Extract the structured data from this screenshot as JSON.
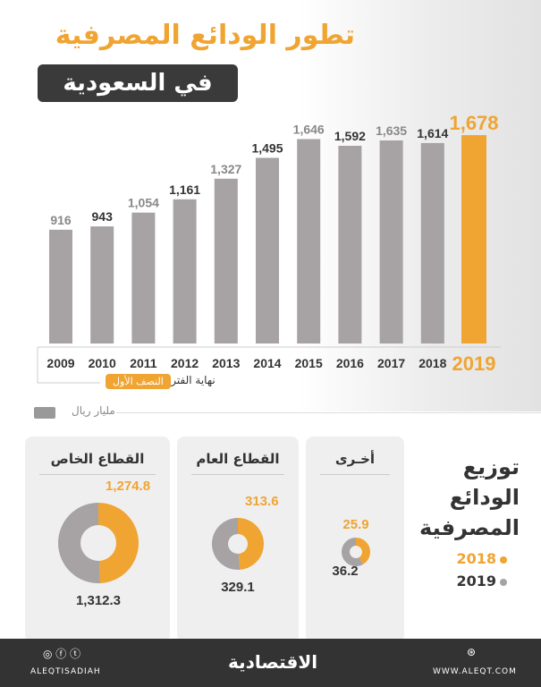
{
  "title": "تطور الودائع المصرفية",
  "subtitle": "في السعودية",
  "unit": "مليار ريال",
  "period_note": "نهاية الفترة",
  "period_badge": "النصف الأول",
  "colors": {
    "accent": "#f0a431",
    "bar": "#a7a2a3",
    "dark": "#333333"
  },
  "chart_data": [
    {
      "type": "bar",
      "categories": [
        "2009",
        "2010",
        "2011",
        "2012",
        "2013",
        "2014",
        "2015",
        "2016",
        "2017",
        "2018",
        "2019"
      ],
      "values": [
        916,
        943,
        1054,
        1161,
        1327,
        1495,
        1646,
        1592,
        1635,
        1614,
        1678
      ],
      "labels": [
        "916",
        "943",
        "1,054",
        "1,161",
        "1,327",
        "1,495",
        "1,646",
        "1,592",
        "1,635",
        "1,614",
        "1,678"
      ],
      "highlight": "2019",
      "ylim": [
        0,
        1700
      ],
      "grid": false
    },
    {
      "type": "pie",
      "title": "توزيع الودائع المصرفية",
      "legend": [
        "2018",
        "2019"
      ],
      "charts": [
        {
          "name": "القطاع الخاص",
          "values": [
            1274.8,
            1312.3
          ],
          "labels": [
            "1,274.8",
            "1,312.3"
          ]
        },
        {
          "name": "القطاع العام",
          "values": [
            313.6,
            329.1
          ],
          "labels": [
            "313.6",
            "329.1"
          ]
        },
        {
          "name": "أخـرى",
          "values": [
            25.9,
            36.2
          ],
          "labels": [
            "25.9",
            "36.2"
          ]
        }
      ]
    }
  ],
  "footer": {
    "brand": "الاقتصادية",
    "handle": "ALEQTISADIAH",
    "website": "WWW.ALEQT.COM"
  }
}
